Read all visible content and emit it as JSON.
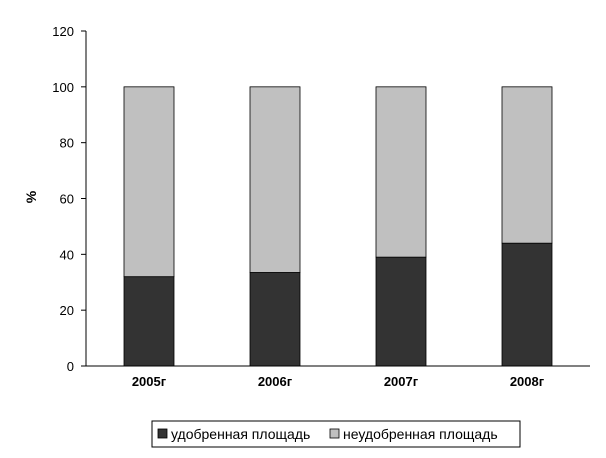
{
  "chart_data": {
    "type": "bar",
    "stacked": true,
    "categories": [
      "2005г",
      "2006г",
      "2007г",
      "2008г"
    ],
    "series": [
      {
        "name": "удобренная площадь",
        "values": [
          32,
          33.5,
          39,
          44
        ],
        "color": "#333333"
      },
      {
        "name": "неудобренная площадь",
        "values": [
          68,
          66.5,
          61,
          56
        ],
        "color": "#c0c0c0"
      }
    ],
    "xlabel": "",
    "ylabel": "%",
    "ylim": [
      0,
      120
    ],
    "yticks": [
      0,
      20,
      40,
      60,
      80,
      100,
      120
    ],
    "grid": false,
    "legend": "bottom"
  }
}
